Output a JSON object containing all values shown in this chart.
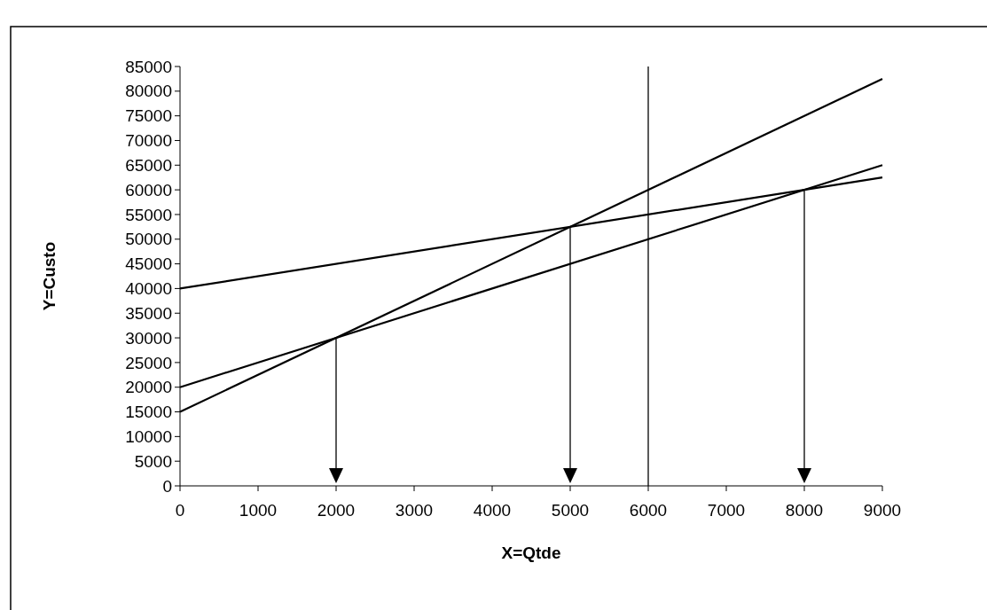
{
  "chart_data": {
    "type": "line",
    "xlabel": "X=Qtde",
    "ylabel": "Y=Custo",
    "x": [
      0,
      9000
    ],
    "series": [
      {
        "color": "#000000",
        "values": [
          40000,
          62500
        ]
      },
      {
        "color": "#000000",
        "values": [
          20000,
          65000
        ]
      },
      {
        "color": "#000000",
        "values": [
          15000,
          82500
        ]
      }
    ],
    "ref_lines": [
      {
        "axis": "x",
        "value": 6000,
        "color": "#000000"
      }
    ],
    "xlim": [
      0,
      9000
    ],
    "xticks": [
      0,
      1000,
      2000,
      3000,
      4000,
      5000,
      6000,
      7000,
      8000,
      9000
    ],
    "ylim": [
      0,
      85000
    ],
    "yticks": [
      0,
      5000,
      10000,
      15000,
      20000,
      25000,
      30000,
      35000,
      40000,
      45000,
      50000,
      55000,
      60000,
      65000,
      70000,
      75000,
      80000,
      85000
    ],
    "grid": false,
    "marker": "none",
    "line_style": "solid"
  }
}
